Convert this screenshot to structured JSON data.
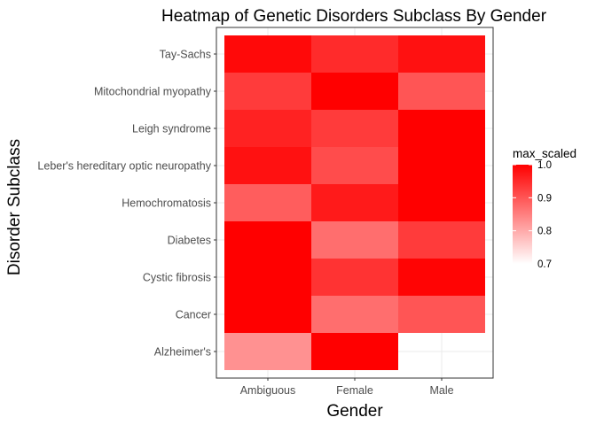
{
  "chart_data": {
    "type": "heatmap",
    "title": "Heatmap of Genetic Disorders Subclass By Gender",
    "xlabel": "Gender",
    "ylabel": "Disorder Subclass",
    "x_categories": [
      "Ambiguous",
      "Female",
      "Male"
    ],
    "y_categories": [
      "Tay-Sachs",
      "Mitochondrial myopathy",
      "Leigh syndrome",
      "Leber's hereditary optic neuropathy",
      "Hemochromatosis",
      "Diabetes",
      "Cystic fibrosis",
      "Cancer",
      "Alzheimer's"
    ],
    "cells": [
      {
        "x": "Ambiguous",
        "y": "Tay-Sachs",
        "value": 0.99
      },
      {
        "x": "Female",
        "y": "Tay-Sachs",
        "value": 0.95
      },
      {
        "x": "Male",
        "y": "Tay-Sachs",
        "value": 0.98
      },
      {
        "x": "Ambiguous",
        "y": "Mitochondrial myopathy",
        "value": 0.93
      },
      {
        "x": "Female",
        "y": "Mitochondrial myopathy",
        "value": 1.0
      },
      {
        "x": "Male",
        "y": "Mitochondrial myopathy",
        "value": 0.9
      },
      {
        "x": "Ambiguous",
        "y": "Leigh syndrome",
        "value": 0.96
      },
      {
        "x": "Female",
        "y": "Leigh syndrome",
        "value": 0.93
      },
      {
        "x": "Male",
        "y": "Leigh syndrome",
        "value": 1.0
      },
      {
        "x": "Ambiguous",
        "y": "Leber's hereditary optic neuropathy",
        "value": 0.98
      },
      {
        "x": "Female",
        "y": "Leber's hereditary optic neuropathy",
        "value": 0.91
      },
      {
        "x": "Male",
        "y": "Leber's hereditary optic neuropathy",
        "value": 1.0
      },
      {
        "x": "Ambiguous",
        "y": "Hemochromatosis",
        "value": 0.89
      },
      {
        "x": "Female",
        "y": "Hemochromatosis",
        "value": 0.97
      },
      {
        "x": "Male",
        "y": "Hemochromatosis",
        "value": 1.0
      },
      {
        "x": "Ambiguous",
        "y": "Diabetes",
        "value": 1.0
      },
      {
        "x": "Female",
        "y": "Diabetes",
        "value": 0.87
      },
      {
        "x": "Male",
        "y": "Diabetes",
        "value": 0.93
      },
      {
        "x": "Ambiguous",
        "y": "Cystic fibrosis",
        "value": 1.0
      },
      {
        "x": "Female",
        "y": "Cystic fibrosis",
        "value": 0.94
      },
      {
        "x": "Male",
        "y": "Cystic fibrosis",
        "value": 0.995
      },
      {
        "x": "Ambiguous",
        "y": "Cancer",
        "value": 1.0
      },
      {
        "x": "Female",
        "y": "Cancer",
        "value": 0.87
      },
      {
        "x": "Male",
        "y": "Cancer",
        "value": 0.9
      },
      {
        "x": "Ambiguous",
        "y": "Alzheimer's",
        "value": 0.83
      },
      {
        "x": "Female",
        "y": "Alzheimer's",
        "value": 1.0
      }
    ],
    "legend": {
      "title": "max_scaled",
      "ticks": [
        0.7,
        0.8,
        0.9,
        1.0
      ],
      "tick_labels": [
        "0.7",
        "0.8",
        "0.9",
        "1.0"
      ],
      "range": [
        0.7,
        1.0
      ],
      "placement": "right"
    },
    "colors": {
      "low": "#ffffff",
      "high": "#ff0000",
      "border": "#333333",
      "grid": "#ebebeb"
    }
  }
}
